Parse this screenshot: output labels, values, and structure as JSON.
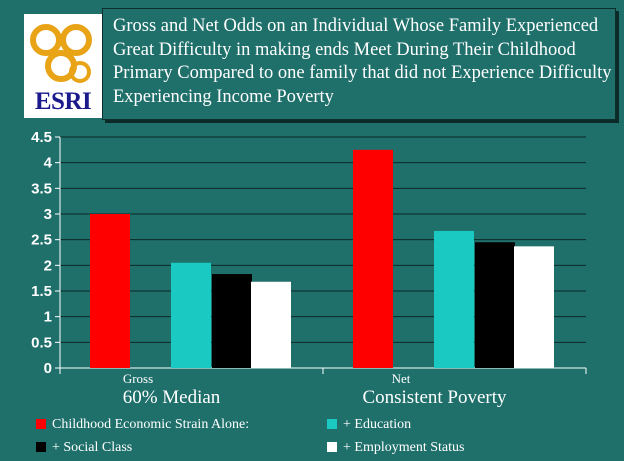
{
  "slide": {
    "title": "Gross and Net Odds on an Individual Whose Family Experienced Great Difficulty in making ends Meet During Their Childhood Primary Compared to one family that did not Experience Difficulty Experiencing Income Poverty",
    "logo_text": "ESRI"
  },
  "colors": {
    "background": "#1f6f6b",
    "text": "#ffffff",
    "series": [
      "#ff0000",
      "#19c9c2",
      "#000000",
      "#ffffff"
    ]
  },
  "chart_data": {
    "type": "bar",
    "title": "Gross and Net Odds on an Individual Whose Family Experienced Great Difficulty in making ends Meet During Their Childhood Primary Compared to one family that did not Experience Difficulty Experiencing Income Poverty",
    "categories": [
      "Gross",
      "Net"
    ],
    "group_labels": [
      "60% Median",
      "Consistent Poverty"
    ],
    "series": [
      {
        "name": "Childhood Economic Strain Alone:",
        "values": [
          3.0,
          4.25
        ]
      },
      {
        "name": "+ Education",
        "values": [
          2.05,
          2.67
        ]
      },
      {
        "name": "+ Social Class",
        "values": [
          1.83,
          2.45
        ]
      },
      {
        "name": "+ Employment Status",
        "values": [
          1.68,
          2.37
        ]
      }
    ],
    "ylim": [
      0,
      4.5
    ],
    "yticks": [
      "0",
      "0.5",
      "1",
      "1.5",
      "2",
      "2.5",
      "3",
      "3.5",
      "4",
      "4.5"
    ],
    "xlabel": "",
    "ylabel": "",
    "grid": true,
    "legend_position": "bottom"
  }
}
